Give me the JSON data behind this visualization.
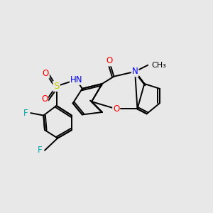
{
  "background_color": "#e8e8e8",
  "bond_color": "#000000",
  "bond_width": 1.4,
  "atom_colors": {
    "O": "#ff0000",
    "N": "#0000ff",
    "S": "#cccc00",
    "F": "#00aaaa",
    "H": "#888888",
    "C": "#000000"
  },
  "font_size": 8.5,
  "fig_width": 3.0,
  "fig_height": 3.0,
  "dpi": 100
}
